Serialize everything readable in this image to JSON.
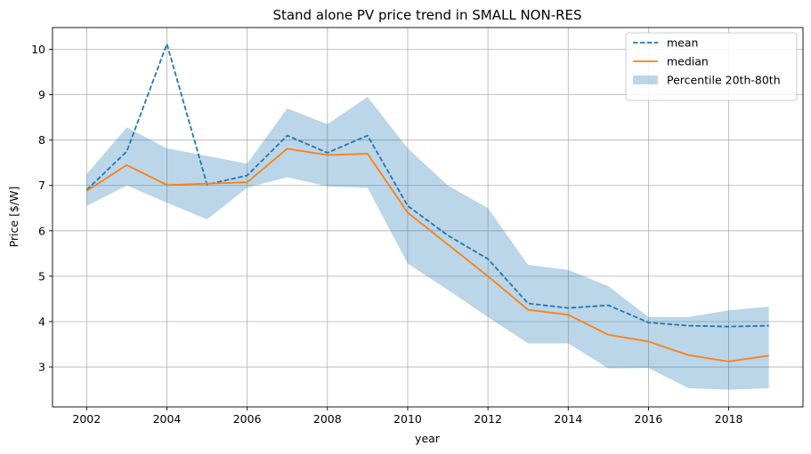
{
  "chart_data": {
    "type": "line",
    "title": "Stand alone PV price trend in SMALL NON-RES",
    "xlabel": "year",
    "ylabel": "Price [$/W]",
    "x": [
      2002,
      2003,
      2004,
      2005,
      2006,
      2007,
      2008,
      2009,
      2010,
      2011,
      2012,
      2013,
      2014,
      2015,
      2016,
      2017,
      2018,
      2019
    ],
    "xlim": [
      2001.15,
      2019.85
    ],
    "ylim": [
      2.12,
      10.48
    ],
    "xticks": [
      2002,
      2004,
      2006,
      2008,
      2010,
      2012,
      2014,
      2016,
      2018
    ],
    "yticks": [
      3,
      4,
      5,
      6,
      7,
      8,
      9,
      10
    ],
    "grid": true,
    "legend_position": "top-right",
    "series": [
      {
        "name": "mean",
        "style": "dashed",
        "color": "#1f77b4",
        "values": [
          6.9,
          7.75,
          10.12,
          7.02,
          7.22,
          8.1,
          7.72,
          8.1,
          6.55,
          5.9,
          5.38,
          4.4,
          4.3,
          4.36,
          3.98,
          3.91,
          3.89,
          3.91
        ]
      },
      {
        "name": "median",
        "style": "solid",
        "color": "#ff7f0e",
        "values": [
          6.88,
          7.45,
          7.01,
          7.04,
          7.07,
          7.81,
          7.67,
          7.7,
          6.4,
          5.7,
          5.0,
          4.26,
          4.15,
          3.71,
          3.56,
          3.26,
          3.12,
          3.25
        ]
      }
    ],
    "band": {
      "name": "Percentile 20th-80th",
      "color": "#1f77b4",
      "opacity": 0.3,
      "lower": [
        6.55,
        7.0,
        6.62,
        6.25,
        6.95,
        7.18,
        6.98,
        6.95,
        5.28,
        4.7,
        4.1,
        3.52,
        3.52,
        2.97,
        2.98,
        2.53,
        2.5,
        2.53
      ],
      "upper": [
        7.25,
        8.28,
        7.82,
        7.65,
        7.48,
        8.7,
        8.35,
        8.95,
        7.82,
        7.0,
        6.5,
        5.25,
        5.14,
        4.78,
        4.1,
        4.1,
        4.25,
        4.33
      ]
    }
  }
}
